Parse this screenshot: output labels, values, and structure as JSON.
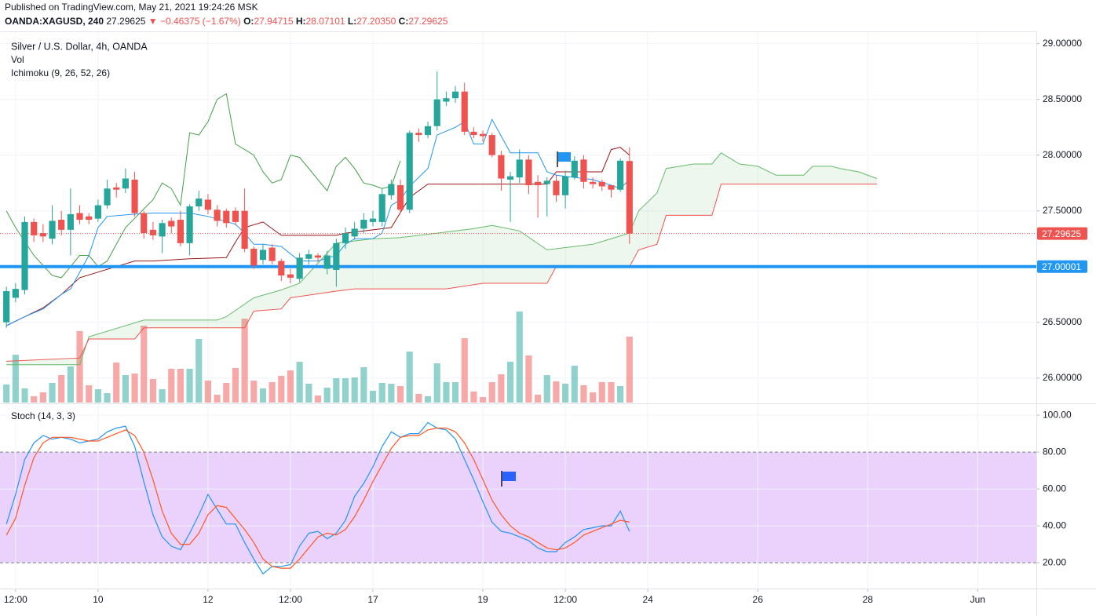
{
  "header": {
    "published": "Published on TradingView.com, May 21, 2021 19:24:26 MSK",
    "symbol": "OANDA:XAGUSD, 240",
    "last": "27.29625",
    "change": "▼ −0.46375 (−1.67%)",
    "ohlc": [
      {
        "label": "O:",
        "value": "27.94715"
      },
      {
        "label": "H:",
        "value": "28.07101"
      },
      {
        "label": "L:",
        "value": "27.20350"
      },
      {
        "label": "C:",
        "value": "27.29625"
      }
    ]
  },
  "chart_data": [
    {
      "type": "candlestick",
      "title": "Silver / U.S. Dollar, 4h, OANDA",
      "x": [
        0,
        1,
        2,
        3,
        4,
        5,
        6,
        7,
        8,
        9,
        10,
        11,
        12,
        13,
        14,
        15,
        16,
        17,
        18,
        19,
        20,
        21,
        22,
        23,
        24,
        25,
        26,
        27,
        28,
        29,
        30,
        31,
        32,
        33,
        34,
        35,
        36,
        37,
        38,
        39,
        40,
        41,
        42,
        43,
        44,
        45,
        46,
        47,
        48,
        49,
        50,
        51,
        52,
        53,
        54,
        55,
        56,
        57,
        58,
        59,
        60,
        61,
        62,
        63,
        64,
        65,
        66,
        67,
        68
      ],
      "open": [
        26.5,
        26.72,
        26.79,
        27.4,
        27.3,
        27.25,
        27.42,
        27.33,
        27.48,
        27.45,
        27.43,
        27.55,
        27.71,
        27.7,
        27.78,
        27.48,
        27.33,
        27.27,
        27.41,
        27.42,
        27.21,
        27.54,
        27.6,
        27.51,
        27.5,
        27.5,
        27.5,
        27.16,
        27.06,
        27.17,
        27.05,
        26.93,
        26.89,
        27.07,
        27.1,
        26.98,
        26.97,
        27.21,
        27.27,
        27.34,
        27.4,
        27.4,
        27.64,
        27.73,
        27.51,
        28.2,
        28.18,
        28.26,
        28.48,
        28.51,
        28.57,
        28.21,
        28.19,
        28.18,
        28.0,
        27.78,
        27.8,
        27.96,
        27.76,
        27.74,
        27.77,
        27.64,
        27.8,
        27.96,
        27.76,
        27.76,
        27.73,
        27.69,
        27.94715
      ],
      "high": [
        26.82,
        26.85,
        27.45,
        27.43,
        27.38,
        27.55,
        27.5,
        27.7,
        27.55,
        27.48,
        27.6,
        27.78,
        27.75,
        27.88,
        27.85,
        27.5,
        27.4,
        27.42,
        27.44,
        27.5,
        27.56,
        27.68,
        27.65,
        27.55,
        27.52,
        27.53,
        27.7,
        27.18,
        27.2,
        27.2,
        27.07,
        26.98,
        27.12,
        27.15,
        27.12,
        27.14,
        27.25,
        27.35,
        27.4,
        27.48,
        27.5,
        27.7,
        27.78,
        27.78,
        28.22,
        28.24,
        28.3,
        28.75,
        28.57,
        28.62,
        28.65,
        28.25,
        28.22,
        28.2,
        28.04,
        27.85,
        28.05,
        28.0,
        27.82,
        27.8,
        27.82,
        27.86,
        27.99,
        28.0,
        27.8,
        27.78,
        27.73,
        27.97,
        28.07101
      ],
      "low": [
        26.45,
        26.68,
        26.75,
        27.22,
        27.22,
        27.2,
        27.28,
        27.1,
        27.38,
        27.38,
        27.4,
        27.52,
        27.62,
        27.66,
        27.45,
        27.25,
        27.24,
        27.12,
        27.3,
        27.18,
        27.1,
        27.5,
        27.47,
        27.36,
        27.35,
        27.37,
        27.13,
        26.98,
        27.02,
        27.02,
        26.87,
        26.85,
        26.86,
        27.02,
        27.04,
        26.93,
        26.82,
        27.16,
        27.24,
        27.3,
        27.36,
        27.36,
        27.6,
        27.48,
        27.48,
        28.12,
        28.15,
        28.22,
        28.44,
        28.47,
        28.18,
        28.15,
        28.12,
        27.98,
        27.68,
        27.4,
        27.75,
        27.65,
        27.44,
        27.45,
        27.58,
        27.52,
        27.78,
        27.7,
        27.7,
        27.68,
        27.62,
        27.67,
        27.2035
      ],
      "close": [
        26.78,
        26.8,
        27.4,
        27.28,
        27.27,
        27.41,
        27.33,
        27.47,
        27.42,
        27.42,
        27.55,
        27.7,
        27.69,
        27.79,
        27.48,
        27.3,
        27.28,
        27.39,
        27.36,
        27.21,
        27.54,
        27.61,
        27.51,
        27.41,
        27.39,
        27.4,
        27.16,
        27.01,
        27.15,
        27.05,
        26.92,
        26.9,
        27.08,
        27.11,
        27.08,
        27.1,
        27.21,
        27.3,
        27.34,
        27.42,
        27.43,
        27.65,
        27.74,
        27.51,
        28.2,
        28.18,
        28.26,
        28.5,
        28.51,
        28.57,
        28.21,
        28.18,
        28.17,
        28.0,
        27.79,
        27.81,
        27.96,
        27.73,
        27.73,
        27.77,
        27.64,
        27.81,
        27.95,
        27.76,
        27.74,
        27.72,
        27.69,
        27.95,
        27.29625
      ],
      "up_color": "#26a69a",
      "down_color": "#ef5350",
      "xlim": [
        -0.7,
        112.4
      ],
      "ylim": [
        25.78,
        29.11
      ],
      "yticks": [
        {
          "value": 26,
          "label": "26.00000"
        },
        {
          "value": 26.5,
          "label": "26.50000"
        },
        {
          "value": 27,
          "label": "27.00000"
        },
        {
          "value": 27.5,
          "label": "27.50000"
        },
        {
          "value": 28,
          "label": "28.00000"
        },
        {
          "value": 28.5,
          "label": "28.50000"
        },
        {
          "value": 29,
          "label": "29.00000"
        }
      ],
      "grid": true,
      "volume": {
        "name": "Vol",
        "ylim": [
          0,
          120
        ],
        "values": [
          23,
          61,
          18,
          8,
          13,
          25,
          35,
          46,
          91,
          22,
          17,
          12,
          51,
          35,
          37,
          98,
          30,
          17,
          43,
          43,
          43,
          81,
          28,
          10,
          25,
          44,
          107,
          28,
          18,
          26,
          34,
          41,
          52,
          24,
          9,
          19,
          31,
          31,
          32,
          45,
          15,
          25,
          24,
          21,
          65,
          11,
          8,
          50,
          26,
          26,
          82,
          14,
          7,
          26,
          36,
          52,
          116,
          60,
          10,
          35,
          27,
          24,
          47,
          22,
          13,
          26,
          26,
          21,
          84
        ]
      },
      "ichimoku": {
        "name": "Ichimoku (9, 26, 52, 26)",
        "conversion": {
          "color": "#2196f3",
          "x": [
            0,
            2,
            4,
            6,
            7,
            9,
            10,
            11,
            14,
            16,
            20,
            22,
            25,
            26,
            27,
            28,
            30,
            32,
            34,
            36,
            37,
            38,
            40,
            41,
            42,
            43,
            44,
            46,
            47,
            49,
            50,
            51,
            52,
            53,
            55,
            58,
            59,
            60,
            62,
            64,
            66,
            67,
            68
          ],
          "values": [
            26.47,
            26.55,
            26.62,
            26.75,
            26.8,
            27.1,
            27.35,
            27.45,
            27.47,
            27.48,
            27.48,
            27.45,
            27.38,
            27.3,
            27.2,
            27.2,
            27.18,
            27.05,
            27.05,
            27.1,
            27.2,
            27.25,
            27.25,
            27.3,
            27.55,
            27.6,
            27.72,
            27.88,
            28.18,
            28.25,
            28.3,
            28.1,
            28.1,
            28.32,
            28.02,
            28.02,
            27.85,
            27.82,
            27.8,
            27.78,
            27.73,
            27.7,
            27.78
          ]
        },
        "base": {
          "color": "#991515",
          "x": [
            0,
            2,
            4,
            6,
            8,
            10,
            12,
            14,
            16,
            20,
            24,
            25,
            26,
            28,
            30,
            36,
            37,
            42,
            44,
            46,
            59,
            60,
            65,
            66,
            67,
            68
          ],
          "values": [
            26.47,
            26.55,
            26.63,
            26.75,
            26.9,
            26.95,
            27.0,
            27.05,
            27.05,
            27.07,
            27.08,
            27.22,
            27.35,
            27.4,
            27.28,
            27.28,
            27.3,
            27.35,
            27.62,
            27.74,
            27.74,
            27.85,
            27.85,
            28.05,
            28.07,
            28.0
          ]
        },
        "lagging": {
          "color": "#43a047",
          "x": [
            0,
            1,
            3,
            5,
            6,
            7,
            8,
            9,
            10,
            11,
            12,
            13,
            16,
            17,
            18,
            19,
            20,
            21,
            22,
            23,
            24,
            25,
            26,
            27,
            28,
            29,
            30,
            31,
            32,
            34,
            35,
            36,
            37,
            38,
            39,
            40,
            41,
            42,
            43
          ],
          "values": [
            27.5,
            27.35,
            27.1,
            26.92,
            26.9,
            27.0,
            27.1,
            27.1,
            27.0,
            27.05,
            27.2,
            27.35,
            27.6,
            27.75,
            27.7,
            27.55,
            28.2,
            28.18,
            28.3,
            28.5,
            28.55,
            28.1,
            28.05,
            28.0,
            27.85,
            27.75,
            27.78,
            28.0,
            27.98,
            27.78,
            27.68,
            27.9,
            27.98,
            27.88,
            27.75,
            27.73,
            27.7,
            27.72,
            27.95
          ]
        },
        "span_a": {
          "color": "#66bb6a",
          "x": [
            0,
            8,
            9,
            15,
            23,
            24,
            27,
            30,
            32,
            36,
            40,
            43,
            47,
            51,
            53,
            56,
            59,
            64,
            68,
            69,
            71,
            72,
            75,
            77,
            78,
            80,
            82,
            84,
            87,
            88,
            90,
            91,
            93,
            95
          ],
          "values": [
            26.12,
            26.12,
            26.37,
            26.52,
            26.52,
            26.55,
            26.72,
            26.79,
            26.85,
            27.21,
            27.25,
            27.26,
            27.3,
            27.34,
            27.37,
            27.32,
            27.15,
            27.2,
            27.3,
            27.5,
            27.66,
            27.88,
            27.92,
            27.92,
            28.02,
            27.92,
            27.9,
            27.82,
            27.82,
            27.9,
            27.9,
            27.88,
            27.85,
            27.79
          ]
        },
        "span_b": {
          "color": "#ef5350",
          "x": [
            0,
            8,
            9,
            14,
            15,
            26,
            27,
            30,
            31,
            36,
            38,
            48,
            52,
            59,
            60,
            68,
            69,
            71,
            72,
            77,
            78,
            95
          ],
          "values": [
            26.15,
            26.18,
            26.35,
            26.35,
            26.45,
            26.45,
            26.6,
            26.62,
            26.72,
            26.78,
            26.8,
            26.8,
            26.85,
            26.85,
            27.0,
            27.0,
            27.15,
            27.2,
            27.46,
            27.46,
            27.74,
            27.74
          ]
        },
        "cloud_color": "rgba(76,175,80,0.1)"
      },
      "price_lines": [
        {
          "value": 27.29625,
          "label": "27.29625",
          "color": "#ef5350",
          "style": "dotted"
        },
        {
          "value": 27.00001,
          "label": "27.00001",
          "color": "#2196f3",
          "style": "solid"
        }
      ]
    },
    {
      "type": "line",
      "title": "Stoch (14, 3, 3)",
      "x": [
        0,
        1,
        2,
        3,
        4,
        5,
        6,
        7,
        8,
        9,
        10,
        11,
        12,
        13,
        14,
        15,
        16,
        17,
        18,
        19,
        20,
        21,
        22,
        23,
        24,
        25,
        26,
        27,
        28,
        29,
        30,
        31,
        32,
        33,
        34,
        35,
        36,
        37,
        38,
        39,
        40,
        41,
        42,
        43,
        44,
        45,
        46,
        47,
        48,
        49,
        50,
        51,
        52,
        53,
        54,
        55,
        56,
        57,
        58,
        59,
        60,
        61,
        62,
        63,
        64,
        65,
        66,
        67,
        68
      ],
      "series": [
        {
          "color": "#2196f3",
          "values": [
            41,
            57,
            76,
            85,
            89,
            87,
            88,
            87,
            85,
            86,
            87,
            91,
            93,
            94,
            83,
            64,
            46,
            34,
            29,
            27,
            36,
            46,
            57,
            49,
            41,
            41,
            31,
            22,
            14,
            18,
            18,
            19,
            29,
            36,
            37,
            33,
            36,
            43,
            56,
            63,
            72,
            83,
            91,
            88,
            90,
            90,
            96,
            93,
            92,
            87,
            76,
            65,
            53,
            42,
            37,
            36,
            34,
            32,
            28,
            26,
            26,
            31,
            34,
            38,
            39,
            40,
            40,
            48,
            37
          ]
        },
        {
          "color": "#ff5722",
          "values": [
            35,
            44,
            62,
            77,
            85,
            88,
            88,
            88,
            87,
            86,
            86,
            88,
            90,
            92,
            89,
            80,
            65,
            48,
            36,
            30,
            30,
            36,
            46,
            51,
            50,
            44,
            38,
            31,
            22,
            18,
            17,
            17,
            22,
            28,
            34,
            36,
            35,
            38,
            45,
            54,
            64,
            73,
            82,
            88,
            89,
            89,
            92,
            93,
            93,
            91,
            85,
            76,
            65,
            54,
            46,
            40,
            36,
            34,
            31,
            28,
            27,
            28,
            31,
            35,
            37,
            39,
            41,
            43,
            42
          ]
        }
      ],
      "xlim": [
        -0.7,
        112.4
      ],
      "ylim": [
        6,
        106
      ],
      "yticks": [
        {
          "value": 20,
          "label": "20.00"
        },
        {
          "value": 40,
          "label": "40.00"
        },
        {
          "value": 60,
          "label": "60.00"
        },
        {
          "value": 80,
          "label": "80.00"
        },
        {
          "value": 100,
          "label": "100.00"
        }
      ],
      "xticks": [
        {
          "value": 1,
          "label": "12:00"
        },
        {
          "value": 10,
          "label": "10"
        },
        {
          "value": 22,
          "label": "12"
        },
        {
          "value": 31,
          "label": "12:00"
        },
        {
          "value": 40,
          "label": "17"
        },
        {
          "value": 52,
          "label": "19"
        },
        {
          "value": 61,
          "label": "12:00"
        },
        {
          "value": 70,
          "label": "24"
        },
        {
          "value": 82,
          "label": "26"
        },
        {
          "value": 94,
          "label": "28"
        },
        {
          "value": 106,
          "label": "Jun"
        }
      ],
      "bands": [
        80,
        20
      ],
      "band_color": "#ead2fc",
      "grid": true
    }
  ]
}
